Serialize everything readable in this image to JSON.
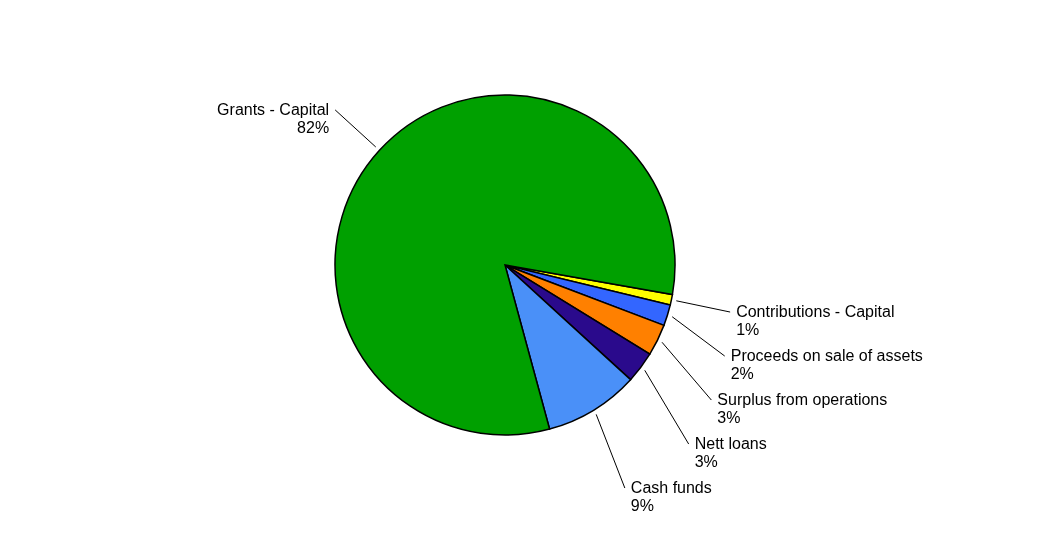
{
  "chart_data": {
    "type": "pie",
    "categories": [
      "Contributions - Capital",
      "Proceeds on sale of assets",
      "Surplus from operations",
      "Nett loans",
      "Cash funds",
      "Grants - Capital"
    ],
    "values": [
      1,
      2,
      3,
      3,
      9,
      82
    ],
    "colors": [
      "#ffff00",
      "#3366ff",
      "#ff8000",
      "#2a0a8c",
      "#4a90f8",
      "#00a000"
    ],
    "value_labels": [
      "1%",
      "2%",
      "3%",
      "3%",
      "9%",
      "82%"
    ],
    "legend": false
  }
}
